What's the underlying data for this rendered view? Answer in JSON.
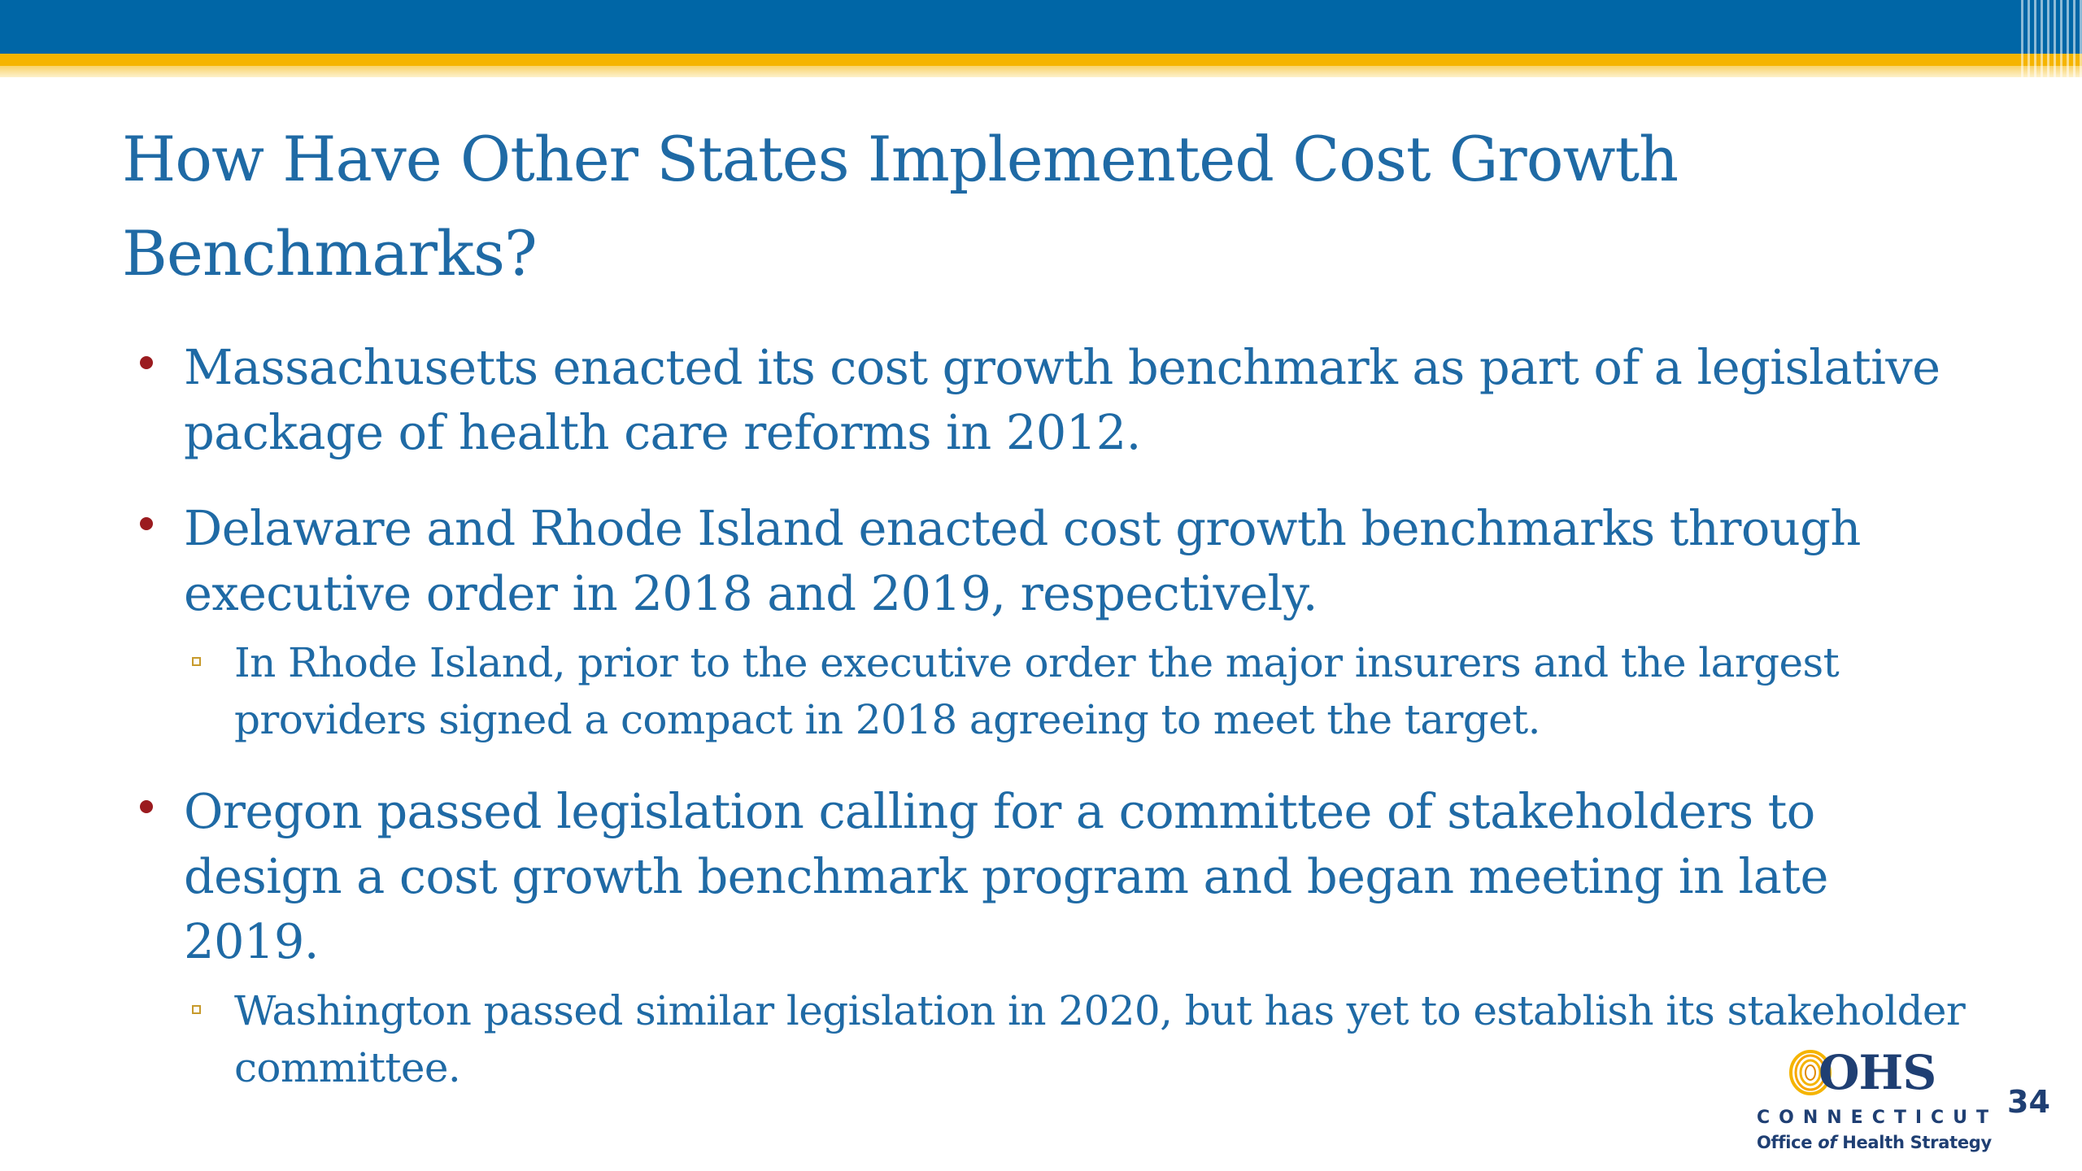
{
  "slide": {
    "title": "How Have Other States Implemented Cost Growth Benchmarks?",
    "bullets": [
      {
        "text": "Massachusetts enacted its cost growth benchmark as part of a legislative package of health care reforms in 2012.",
        "sub": []
      },
      {
        "text": "Delaware and Rhode Island enacted cost growth benchmarks through executive order in 2018 and 2019, respectively.",
        "sub": [
          "In Rhode Island, prior to the executive order the major insurers and the largest providers signed a compact in 2018 agreeing to meet the target."
        ]
      },
      {
        "text": "Oregon passed legislation calling for a committee of stakeholders to design a cost growth benchmark program and began meeting in late 2019.",
        "sub": [
          "Washington passed similar legislation in 2020, but has yet to establish its stakeholder committee."
        ]
      }
    ],
    "page_number": "34"
  },
  "logo": {
    "mark": "OHS",
    "state": "CONNECTICUT",
    "org_prefix": "Office ",
    "org_of": "of",
    "org_suffix": " Health Strategy",
    "icon": "ohs-swirl-icon"
  },
  "colors": {
    "header_blue": "#0066a6",
    "header_gold": "#f5b400",
    "text_blue": "#1f6aa5",
    "bullet_red": "#9b1b1f",
    "sub_bullet_gold": "#c79a2c",
    "logo_navy": "#1f3f73"
  }
}
